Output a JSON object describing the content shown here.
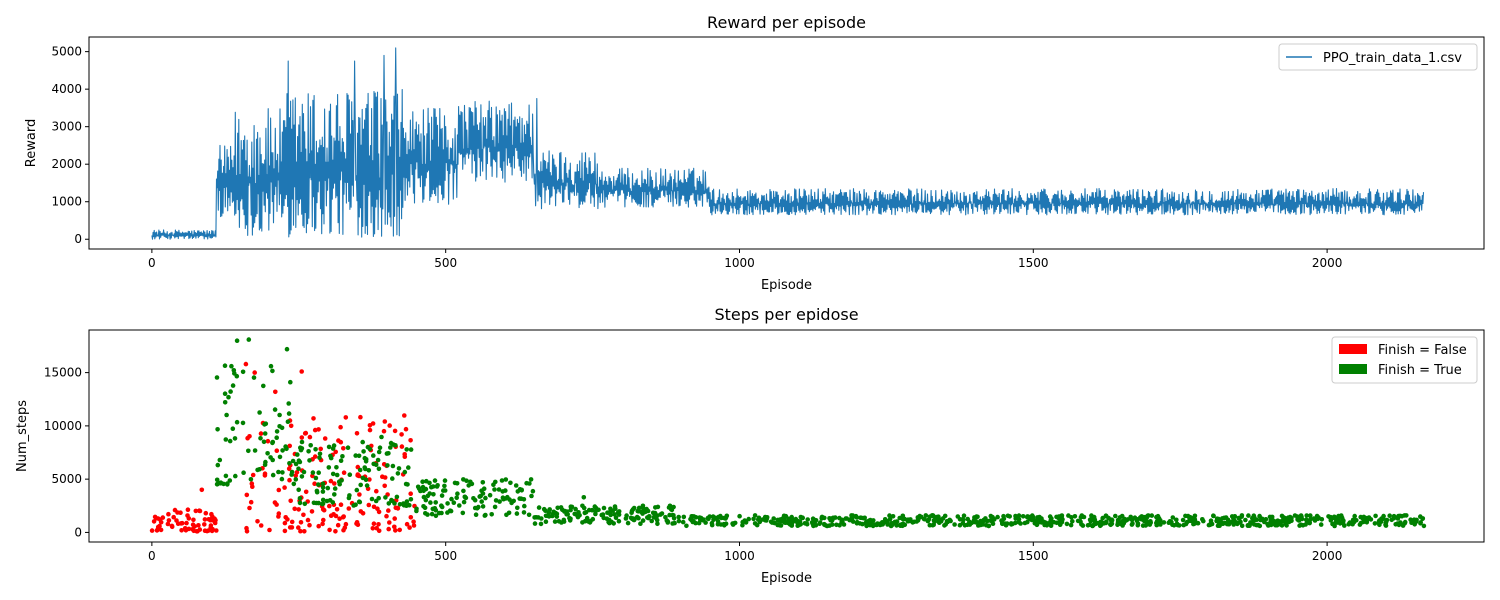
{
  "chart_data": [
    {
      "type": "line",
      "title": "Reward per episode",
      "xlabel": "Episode",
      "ylabel": "Reward",
      "xlim": [
        -107,
        2267
      ],
      "ylim": [
        -260,
        5390
      ],
      "xticks": [
        0,
        500,
        1000,
        1500,
        2000
      ],
      "yticks": [
        0,
        1000,
        2000,
        3000,
        4000,
        5000
      ],
      "legend_position": "top-right",
      "grid": false,
      "series": [
        {
          "name": "PPO_train_data_1.csv",
          "color": "#1f77b4",
          "phases": [
            {
              "x_start": 0,
              "x_end": 110,
              "low": 0,
              "high": 250
            },
            {
              "x_start": 110,
              "x_end": 140,
              "low": 600,
              "high": 2500
            },
            {
              "x_start": 140,
              "x_end": 230,
              "low": 100,
              "high": 3500
            },
            {
              "x_start": 230,
              "x_end": 430,
              "low": 50,
              "high": 4000
            },
            {
              "x_start": 430,
              "x_end": 520,
              "low": 900,
              "high": 3500
            },
            {
              "x_start": 520,
              "x_end": 650,
              "low": 1500,
              "high": 3700
            },
            {
              "x_start": 650,
              "x_end": 760,
              "low": 800,
              "high": 2400
            },
            {
              "x_start": 760,
              "x_end": 950,
              "low": 850,
              "high": 1900
            },
            {
              "x_start": 950,
              "x_end": 2165,
              "low": 650,
              "high": 1350
            }
          ],
          "peaks": [
            {
              "x": 232,
              "y": 4750
            },
            {
              "x": 345,
              "y": 4750
            },
            {
              "x": 395,
              "y": 4900
            },
            {
              "x": 415,
              "y": 5100
            },
            {
              "x": 655,
              "y": 3750
            }
          ]
        }
      ]
    },
    {
      "type": "scatter",
      "title": "Steps per epidose",
      "xlabel": "Episode",
      "ylabel": "Num_steps",
      "xlim": [
        -107,
        2267
      ],
      "ylim": [
        -900,
        19000
      ],
      "xticks": [
        0,
        500,
        1000,
        1500,
        2000
      ],
      "yticks": [
        0,
        5000,
        10000,
        15000
      ],
      "legend_position": "top-right",
      "grid": false,
      "series": [
        {
          "name": "Finish = False",
          "color": "#ff0000",
          "phases": [
            {
              "x_start": 0,
              "x_end": 110,
              "low": 100,
              "high": 2200
            },
            {
              "x_start": 160,
              "x_end": 450,
              "low": 100,
              "high": 11000
            }
          ],
          "points": [
            {
              "x": 85,
              "y": 4000
            },
            {
              "x": 160,
              "y": 15800
            },
            {
              "x": 175,
              "y": 15000
            },
            {
              "x": 210,
              "y": 13200
            },
            {
              "x": 235,
              "y": 10500
            },
            {
              "x": 255,
              "y": 15100
            },
            {
              "x": 275,
              "y": 10700
            },
            {
              "x": 330,
              "y": 10800
            },
            {
              "x": 395,
              "y": 9500
            },
            {
              "x": 425,
              "y": 9200
            }
          ]
        },
        {
          "name": "Finish = True",
          "color": "#008000",
          "phases": [
            {
              "x_start": 110,
              "x_end": 240,
              "low": 4500,
              "high": 16000
            },
            {
              "x_start": 240,
              "x_end": 450,
              "low": 2500,
              "high": 9000
            },
            {
              "x_start": 450,
              "x_end": 650,
              "low": 1500,
              "high": 5000
            },
            {
              "x_start": 650,
              "x_end": 900,
              "low": 800,
              "high": 2500
            },
            {
              "x_start": 900,
              "x_end": 2165,
              "low": 600,
              "high": 1600
            }
          ],
          "points": [
            {
              "x": 145,
              "y": 18000
            },
            {
              "x": 165,
              "y": 18100
            },
            {
              "x": 230,
              "y": 17200
            },
            {
              "x": 620,
              "y": 4400
            },
            {
              "x": 735,
              "y": 3300
            }
          ]
        }
      ]
    }
  ]
}
